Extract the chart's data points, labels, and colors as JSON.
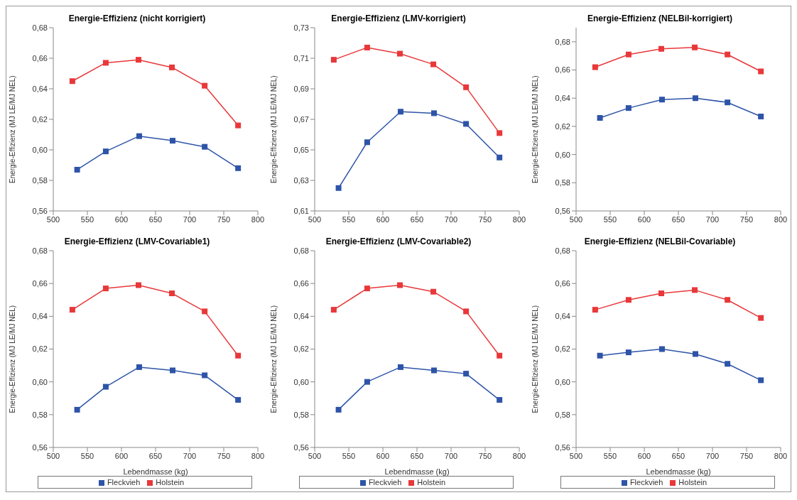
{
  "chart_data": [
    {
      "type": "line",
      "title": "Energie-Effizienz (nicht korrigiert)",
      "ylabel": "Energie-Effizienz (MJ LE/MJ NEL)",
      "xlim": [
        500,
        800
      ],
      "xticks": [
        500,
        550,
        600,
        650,
        700,
        750,
        800
      ],
      "ylim": [
        0.56,
        0.68
      ],
      "yticks": [
        {
          "value": 0.56,
          "label": "0,56"
        },
        {
          "value": 0.58,
          "label": "0,58"
        },
        {
          "value": 0.6,
          "label": "0,60"
        },
        {
          "value": 0.62,
          "label": "0,62"
        },
        {
          "value": 0.64,
          "label": "0,64"
        },
        {
          "value": 0.66,
          "label": "0,66"
        },
        {
          "value": 0.68,
          "label": "0,68"
        }
      ],
      "marker": "square",
      "grid": false,
      "legend": false,
      "series": [
        {
          "color": "#2e54a8",
          "x": [
            535,
            577,
            626,
            675,
            722,
            771
          ],
          "values": [
            0.587,
            0.599,
            0.609,
            0.606,
            0.602,
            0.588
          ]
        },
        {
          "color": "#e8383a",
          "x": [
            528,
            577,
            625,
            674,
            722,
            771
          ],
          "values": [
            0.645,
            0.657,
            0.659,
            0.654,
            0.642,
            0.616
          ]
        }
      ]
    },
    {
      "type": "line",
      "title": "Energie-Effizienz (LMV-korrigiert)",
      "ylabel": "Energie-Effizienz (MJ LE/MJ NEL)",
      "xlim": [
        500,
        800
      ],
      "xticks": [
        500,
        550,
        600,
        650,
        700,
        750,
        800
      ],
      "ylim": [
        0.61,
        0.73
      ],
      "yticks": [
        {
          "value": 0.61,
          "label": "0,61"
        },
        {
          "value": 0.63,
          "label": "0,63"
        },
        {
          "value": 0.65,
          "label": "0,65"
        },
        {
          "value": 0.67,
          "label": "0,67"
        },
        {
          "value": 0.69,
          "label": "0,69"
        },
        {
          "value": 0.71,
          "label": "0,71"
        },
        {
          "value": 0.73,
          "label": "0,73"
        }
      ],
      "marker": "square",
      "grid": false,
      "legend": false,
      "series": [
        {
          "color": "#2e54a8",
          "x": [
            535,
            577,
            626,
            675,
            722,
            771
          ],
          "values": [
            0.625,
            0.655,
            0.675,
            0.674,
            0.667,
            0.645
          ]
        },
        {
          "color": "#e8383a",
          "x": [
            528,
            577,
            625,
            674,
            722,
            771
          ],
          "values": [
            0.709,
            0.717,
            0.713,
            0.706,
            0.691,
            0.661
          ]
        }
      ]
    },
    {
      "type": "line",
      "title": "Energie-Effizienz  (NELBil-korrigiert)",
      "ylabel": "Energie-Effizienz (MJ LE/MJ NEL)",
      "xlim": [
        500,
        800
      ],
      "xticks": [
        500,
        550,
        600,
        650,
        700,
        750,
        800
      ],
      "ylim": [
        0.56,
        0.69
      ],
      "yticks": [
        {
          "value": 0.56,
          "label": "0,56"
        },
        {
          "value": 0.58,
          "label": "0,58"
        },
        {
          "value": 0.6,
          "label": "0,60"
        },
        {
          "value": 0.62,
          "label": "0,62"
        },
        {
          "value": 0.64,
          "label": "0,64"
        },
        {
          "value": 0.66,
          "label": "0,66"
        },
        {
          "value": 0.68,
          "label": "0,68"
        }
      ],
      "marker": "square",
      "grid": false,
      "legend": false,
      "series": [
        {
          "color": "#2e54a8",
          "x": [
            535,
            577,
            626,
            675,
            722,
            771
          ],
          "values": [
            0.626,
            0.633,
            0.639,
            0.64,
            0.637,
            0.627
          ]
        },
        {
          "color": "#e8383a",
          "x": [
            528,
            577,
            625,
            674,
            722,
            771
          ],
          "values": [
            0.662,
            0.671,
            0.675,
            0.676,
            0.671,
            0.659
          ]
        }
      ]
    },
    {
      "type": "line",
      "title": "Energie-Effizienz (LMV-Covariable1)",
      "xlabel": "Lebendmasse (kg)",
      "ylabel": "Energie-Effizienz (MJ LE/MJ NEL)",
      "xlim": [
        500,
        800
      ],
      "xticks": [
        500,
        550,
        600,
        650,
        700,
        750,
        800
      ],
      "ylim": [
        0.56,
        0.68
      ],
      "yticks": [
        {
          "value": 0.56,
          "label": "0,56"
        },
        {
          "value": 0.58,
          "label": "0,58"
        },
        {
          "value": 0.6,
          "label": "0,60"
        },
        {
          "value": 0.62,
          "label": "0,62"
        },
        {
          "value": 0.64,
          "label": "0,64"
        },
        {
          "value": 0.66,
          "label": "0,66"
        },
        {
          "value": 0.68,
          "label": "0,68"
        }
      ],
      "marker": "square",
      "grid": false,
      "legend": "bottom",
      "series": [
        {
          "name": "Fleckvieh",
          "color": "#2e54a8",
          "x": [
            535,
            577,
            626,
            675,
            722,
            771
          ],
          "values": [
            0.583,
            0.597,
            0.609,
            0.607,
            0.604,
            0.589
          ]
        },
        {
          "name": "Holstein",
          "color": "#e8383a",
          "x": [
            528,
            577,
            625,
            674,
            722,
            771
          ],
          "values": [
            0.644,
            0.657,
            0.659,
            0.654,
            0.643,
            0.616
          ]
        }
      ]
    },
    {
      "type": "line",
      "title": "Energie-Effizienz (LMV-Covariable2)",
      "xlabel": "Lebendmasse (kg)",
      "ylabel": "Energie-Effizienz (MJ LE/MJ NEL)",
      "xlim": [
        500,
        800
      ],
      "xticks": [
        500,
        550,
        600,
        650,
        700,
        750,
        800
      ],
      "ylim": [
        0.56,
        0.68
      ],
      "yticks": [
        {
          "value": 0.56,
          "label": "0,56"
        },
        {
          "value": 0.58,
          "label": "0,58"
        },
        {
          "value": 0.6,
          "label": "0,60"
        },
        {
          "value": 0.62,
          "label": "0,62"
        },
        {
          "value": 0.64,
          "label": "0,64"
        },
        {
          "value": 0.66,
          "label": "0,66"
        },
        {
          "value": 0.68,
          "label": "0,68"
        }
      ],
      "marker": "square",
      "grid": false,
      "legend": "bottom",
      "series": [
        {
          "name": "Fleckvieh",
          "color": "#2e54a8",
          "x": [
            535,
            577,
            626,
            675,
            722,
            771
          ],
          "values": [
            0.583,
            0.6,
            0.609,
            0.607,
            0.605,
            0.589
          ]
        },
        {
          "name": "Holstein",
          "color": "#e8383a",
          "x": [
            528,
            577,
            625,
            674,
            722,
            771
          ],
          "values": [
            0.644,
            0.657,
            0.659,
            0.655,
            0.643,
            0.616
          ]
        }
      ]
    },
    {
      "type": "line",
      "title": "Energie-Effizienz (NELBil-Covariable)",
      "xlabel": "Lebendmasse (kg)",
      "ylabel": "Energie-Effizienz (MJ LE/MJ NEL)",
      "xlim": [
        500,
        800
      ],
      "xticks": [
        500,
        550,
        600,
        650,
        700,
        750,
        800
      ],
      "ylim": [
        0.56,
        0.68
      ],
      "yticks": [
        {
          "value": 0.56,
          "label": "0,56"
        },
        {
          "value": 0.58,
          "label": "0,58"
        },
        {
          "value": 0.6,
          "label": "0,60"
        },
        {
          "value": 0.62,
          "label": "0,62"
        },
        {
          "value": 0.64,
          "label": "0,64"
        },
        {
          "value": 0.66,
          "label": "0,66"
        },
        {
          "value": 0.68,
          "label": "0,68"
        }
      ],
      "marker": "square",
      "grid": false,
      "legend": "bottom",
      "series": [
        {
          "name": "Fleckvieh",
          "color": "#2e54a8",
          "x": [
            535,
            577,
            626,
            675,
            722,
            771
          ],
          "values": [
            0.616,
            0.618,
            0.62,
            0.617,
            0.611,
            0.601
          ]
        },
        {
          "name": "Holstein",
          "color": "#e8383a",
          "x": [
            528,
            577,
            625,
            674,
            722,
            771
          ],
          "values": [
            0.644,
            0.65,
            0.654,
            0.656,
            0.65,
            0.639
          ]
        }
      ]
    }
  ]
}
